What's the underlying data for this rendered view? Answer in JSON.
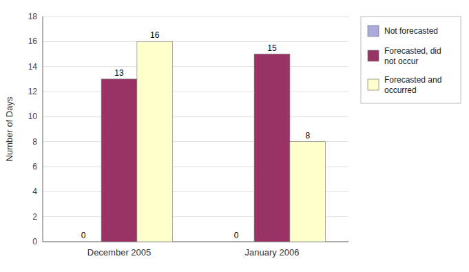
{
  "chart_data": {
    "type": "bar",
    "y_label": "Number of Days",
    "categories": [
      "December 2005",
      "January 2006"
    ],
    "series": [
      {
        "name": "Not forecasted",
        "color": "#aaaadd",
        "values": [
          0,
          0
        ]
      },
      {
        "name": "Forecasted, did\nnot occur",
        "color": "#993366",
        "values": [
          13,
          15
        ]
      },
      {
        "name": "Forecasted and\noccurred",
        "color": "#ffffcc",
        "values": [
          16,
          8
        ]
      }
    ],
    "ylim": [
      0,
      18
    ],
    "yticks": [
      0,
      2,
      4,
      6,
      8,
      10,
      12,
      14,
      16,
      18
    ],
    "grid": true,
    "legend": "right",
    "data_labels": true
  }
}
